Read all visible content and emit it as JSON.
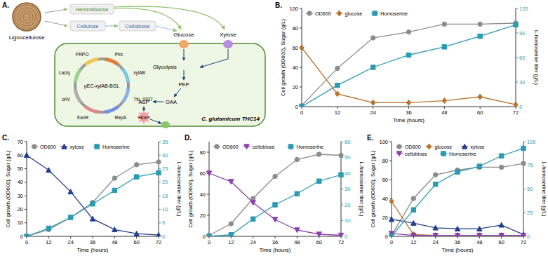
{
  "diagram": {
    "panel_label": "A.",
    "source": "Lignocellulose",
    "polymers": [
      "Hemicellulose",
      "Cellulose",
      "Cellobiose"
    ],
    "sugars": [
      "Glucose",
      "Xylose"
    ],
    "pathway": [
      "Glycolysis",
      "PEP",
      "OAA",
      "ASP",
      "Hom"
    ],
    "strain": "C. glutamicum THC14",
    "plasmid": {
      "name": "pEC-xylAB-BGL",
      "elements": [
        "Ptrc",
        "xylAB",
        "Tfu_0937",
        "RepA",
        "KanR",
        "oriV",
        "LacIq",
        "PRPO"
      ]
    }
  },
  "chart_data": [
    {
      "type": "line",
      "panel_label": "B.",
      "xlabel": "Time (hours)",
      "ylabel": "Cell growth (OD600), Sugar (g/L)",
      "y2label": "L-homoserine titer (g/L)",
      "x": [
        0,
        12,
        24,
        36,
        48,
        60,
        72
      ],
      "xlim": [
        0,
        72
      ],
      "xticks": [
        0,
        12,
        24,
        36,
        48,
        60,
        72
      ],
      "ylim": [
        0,
        100
      ],
      "yticks": [
        0,
        20,
        40,
        60,
        80,
        100
      ],
      "y2lim": [
        0,
        120
      ],
      "y2ticks": [
        0,
        30,
        60,
        90,
        120
      ],
      "legend": "top",
      "series": [
        {
          "name": "OD600",
          "color": "#8c8c8c",
          "marker": "circle",
          "values": [
            1,
            39,
            70,
            76,
            84,
            84,
            85
          ]
        },
        {
          "name": "glucose",
          "color": "#b8732e",
          "marker": "diamond",
          "values": [
            60,
            13,
            4,
            4,
            6,
            10,
            2
          ]
        },
        {
          "name": "Homoserine",
          "color": "#2a9bb3",
          "marker": "square",
          "axis": "y2",
          "values": [
            0,
            26,
            48,
            63,
            73,
            86,
            100
          ]
        }
      ]
    },
    {
      "type": "line",
      "panel_label": "C.",
      "xlabel": "Time (hours)",
      "ylabel": "Cell growth (OD600), Sugar (g/L)",
      "y2label": "L-homoserine titer (g/L)",
      "x": [
        0,
        12,
        24,
        36,
        48,
        60,
        72
      ],
      "xlim": [
        0,
        72
      ],
      "xticks": [
        0,
        12,
        24,
        36,
        48,
        60,
        72
      ],
      "ylim": [
        0,
        70
      ],
      "yticks": [
        0,
        10,
        20,
        30,
        40,
        50,
        60,
        70
      ],
      "y2lim": [
        0,
        35
      ],
      "y2ticks": [
        0,
        5,
        10,
        15,
        20,
        25,
        30,
        35
      ],
      "legend": "top",
      "series": [
        {
          "name": "OD600",
          "color": "#8c8c8c",
          "marker": "circle",
          "values": [
            0,
            5,
            14,
            25,
            43,
            53,
            55
          ]
        },
        {
          "name": "xylose",
          "color": "#233f8f",
          "marker": "triangle-up",
          "values": [
            60,
            49,
            33,
            13,
            5,
            2,
            1
          ]
        },
        {
          "name": "Homoserine",
          "color": "#2a9bb3",
          "marker": "square",
          "axis": "y2",
          "values": [
            0,
            3,
            7,
            12,
            17,
            22,
            23.5
          ]
        }
      ]
    },
    {
      "type": "line",
      "panel_label": "D.",
      "xlabel": "Time (hours)",
      "ylabel": "Cell growth (OD600), Sugar (g/L)",
      "y2label": "L-homoserine titer (g/L)",
      "x": [
        0,
        12,
        24,
        36,
        48,
        60,
        72
      ],
      "xlim": [
        0,
        72
      ],
      "xticks": [
        0,
        12,
        24,
        36,
        48,
        60,
        72
      ],
      "ylim": [
        0,
        90
      ],
      "yticks": [
        0,
        20,
        40,
        60,
        80
      ],
      "y2lim": [
        0,
        60
      ],
      "y2ticks": [
        0,
        10,
        20,
        30,
        40,
        50,
        60
      ],
      "legend": "top",
      "series": [
        {
          "name": "OD600",
          "color": "#8c8c8c",
          "marker": "circle",
          "values": [
            1,
            12,
            36,
            57,
            73,
            78,
            77
          ]
        },
        {
          "name": "cellobiose",
          "color": "#8b3fae",
          "marker": "triangle-down",
          "values": [
            60,
            52,
            32,
            16,
            6,
            2,
            1
          ]
        },
        {
          "name": "Homoserine",
          "color": "#2a9bb3",
          "marker": "square",
          "axis": "y2",
          "values": [
            0,
            1,
            11,
            20,
            27,
            35,
            39
          ]
        }
      ]
    },
    {
      "type": "line",
      "panel_label": "E.",
      "xlabel": "Time (hours)",
      "ylabel": "Cell growth (OD600), Sugar (g/L)",
      "y2label": "L-homoserine titer (g/L)",
      "x": [
        0,
        12,
        24,
        36,
        48,
        60,
        72
      ],
      "xlim": [
        0,
        72
      ],
      "xticks": [
        0,
        12,
        24,
        36,
        48,
        60,
        72
      ],
      "ylim": [
        0,
        100
      ],
      "yticks": [
        0,
        20,
        40,
        60,
        80,
        100
      ],
      "y2lim": [
        0,
        100
      ],
      "y2ticks": [
        0,
        25,
        50,
        75,
        100
      ],
      "legend": "top",
      "series": [
        {
          "name": "OD600",
          "color": "#8c8c8c",
          "marker": "circle",
          "values": [
            1,
            40,
            65,
            70,
            73,
            73,
            77
          ]
        },
        {
          "name": "glucose",
          "color": "#b8732e",
          "marker": "diamond",
          "values": [
            37,
            2,
            1,
            1,
            1,
            1,
            1
          ]
        },
        {
          "name": "xylose",
          "color": "#233f8f",
          "marker": "triangle-up",
          "values": [
            18,
            14,
            9,
            8,
            8,
            12,
            2
          ]
        },
        {
          "name": "cellobiose",
          "color": "#8b3fae",
          "marker": "triangle-down",
          "values": [
            3,
            1,
            1,
            1,
            1,
            1,
            1
          ]
        },
        {
          "name": "Homoserine",
          "color": "#2a9bb3",
          "marker": "square",
          "axis": "y2",
          "values": [
            0,
            28,
            55,
            68,
            74,
            85,
            93
          ]
        }
      ]
    }
  ]
}
